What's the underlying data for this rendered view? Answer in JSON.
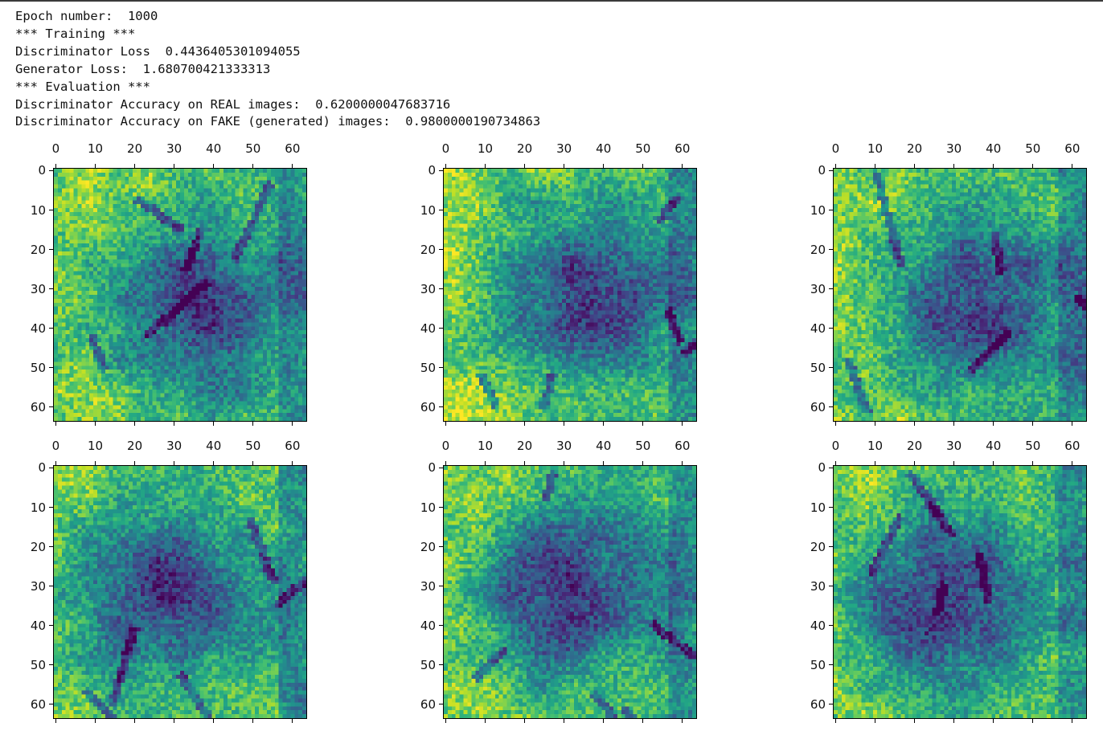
{
  "console": {
    "lines": [
      "Epoch number:  1000",
      "*** Training ***",
      "Discriminator Loss  0.4436405301094055",
      "Generator Loss:  1.680700421333313",
      "*** Evaluation ***",
      "Discriminator Accuracy on REAL images:  0.6200000047683716",
      "Discriminator Accuracy on FAKE (generated) images:  0.9800000190734863"
    ]
  },
  "chart_data": {
    "type": "heatmap",
    "grid": "3x2",
    "image_size": 64,
    "colormap": "viridis",
    "x_ticks": [
      0,
      10,
      20,
      30,
      40,
      50,
      60
    ],
    "y_ticks": [
      0,
      10,
      20,
      30,
      40,
      50,
      60
    ],
    "x_tick_position": "top",
    "panels": [
      {
        "row": 0,
        "col": 0,
        "dark_center": [
          35,
          36
        ]
      },
      {
        "row": 0,
        "col": 1,
        "dark_center": [
          35,
          32
        ]
      },
      {
        "row": 0,
        "col": 2,
        "dark_center": [
          36,
          35
        ]
      },
      {
        "row": 1,
        "col": 0,
        "dark_center": [
          27,
          32
        ]
      },
      {
        "row": 1,
        "col": 1,
        "dark_center": [
          30,
          31
        ]
      },
      {
        "row": 1,
        "col": 2,
        "dark_center": [
          27,
          33
        ]
      }
    ]
  }
}
